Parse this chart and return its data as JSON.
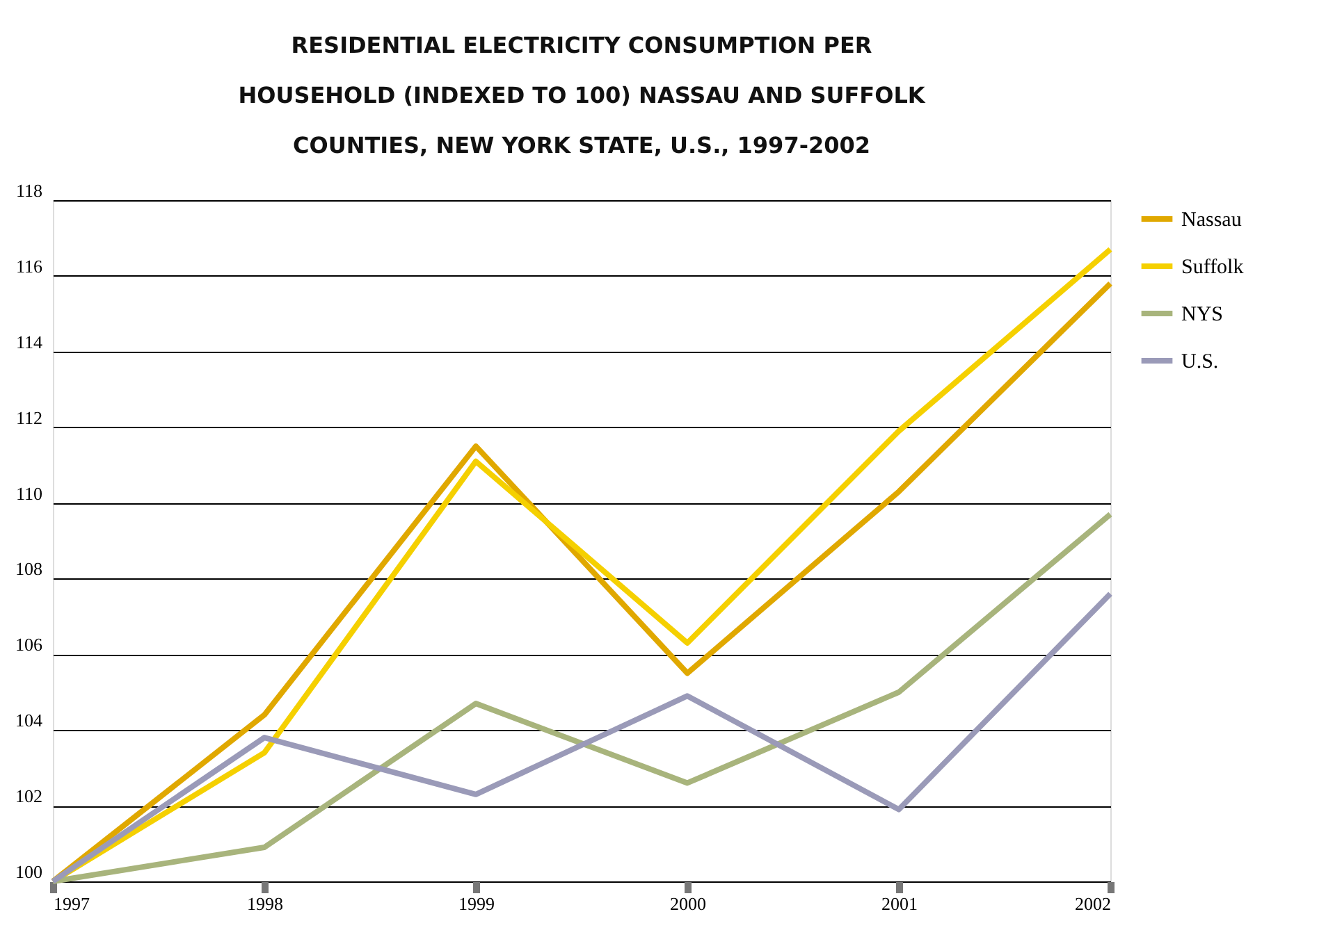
{
  "chart_data": {
    "type": "line",
    "title": [
      "RESIDENTIAL ELECTRICITY CONSUMPTION PER",
      "HOUSEHOLD (INDEXED TO 100) NASSAU AND SUFFOLK",
      "COUNTIES, NEW YORK STATE, U.S., 1997-2002"
    ],
    "categories": [
      "1997",
      "1998",
      "1999",
      "2000",
      "2001",
      "2002"
    ],
    "series": [
      {
        "name": "Nassau",
        "color": "#e0a800",
        "values": [
          100,
          104.4,
          111.5,
          105.5,
          110.3,
          115.8
        ]
      },
      {
        "name": "Suffolk",
        "color": "#f5d000",
        "values": [
          100,
          103.4,
          111.1,
          106.3,
          111.9,
          116.7
        ]
      },
      {
        "name": "NYS",
        "color": "#a8b47c",
        "values": [
          100,
          100.9,
          104.7,
          102.6,
          105.0,
          109.7
        ]
      },
      {
        "name": "U.S.",
        "color": "#9a9ab8",
        "values": [
          100,
          103.8,
          102.3,
          104.9,
          101.9,
          107.6
        ]
      }
    ],
    "ylim": [
      100,
      118
    ],
    "yticks": [
      100,
      102,
      104,
      106,
      108,
      110,
      112,
      114,
      116,
      118
    ],
    "grid": "y",
    "legend": "right",
    "marker": "none",
    "line_style": "solid"
  }
}
